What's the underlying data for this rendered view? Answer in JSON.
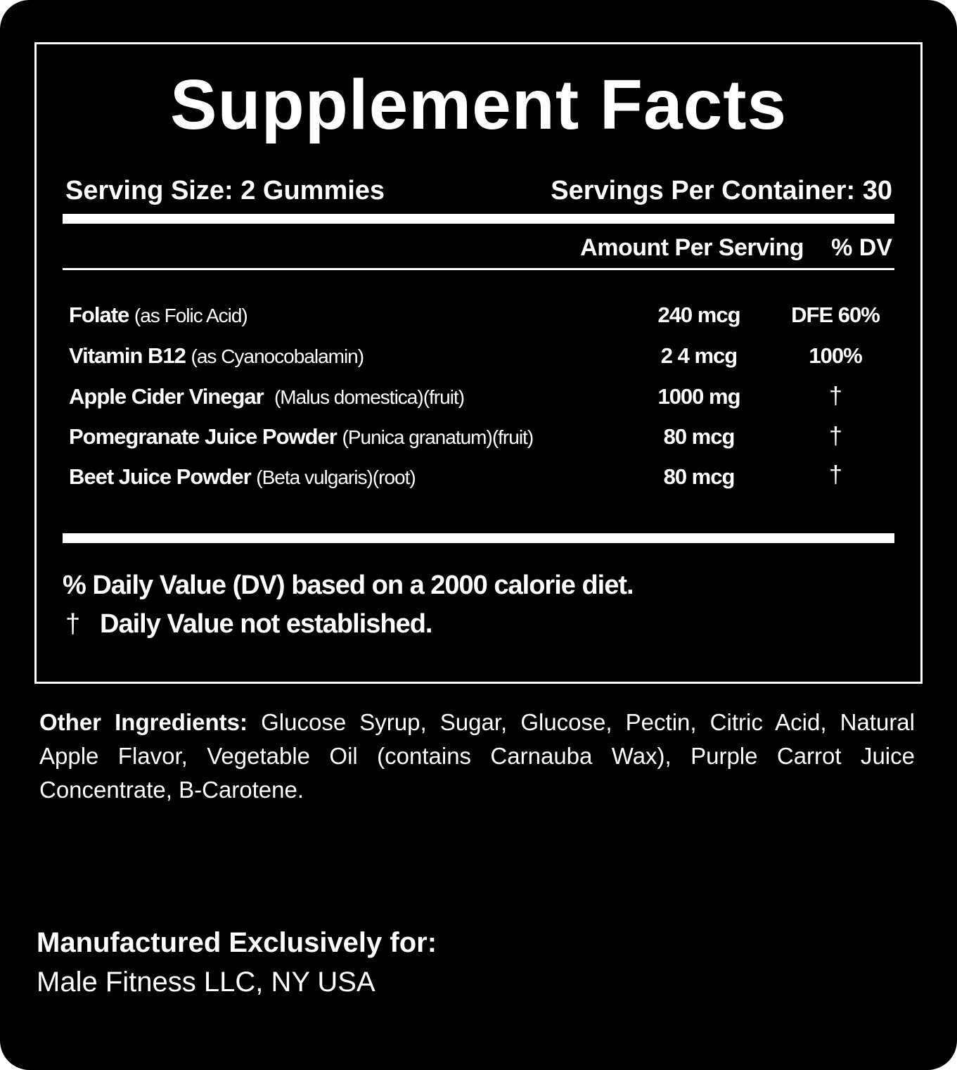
{
  "title": "Supplement Facts",
  "serving_size": "Serving Size: 2 Gummies",
  "servings_per_container": "Servings Per Container: 30",
  "amount_per_serving": "Amount Per Serving",
  "dv_header": "% DV",
  "rows": [
    {
      "name": "Folate",
      "source": "(as Folic Acid)",
      "amount": "240 mcg",
      "dv": "DFE 60%"
    },
    {
      "name": "Vitamin B12",
      "source": "(as Cyanocobalamin)",
      "amount": "2 4 mcg",
      "dv": "100%"
    },
    {
      "name": "Apple Cider Vinegar",
      "source": "(Malus domestica)(fruit)",
      "amount": "1000 mg",
      "dv": "†"
    },
    {
      "name": "Pomegranate Juice Powder",
      "source": "(Punica granatum)(fruit)",
      "amount": "80 mcg",
      "dv": "†"
    },
    {
      "name": "Beet Juice Powder",
      "source": "(Beta vulgaris)(root)",
      "amount": "80 mcg",
      "dv": "†"
    }
  ],
  "footnote_dv": "% Daily Value (DV) based on a 2000 calorie diet.",
  "footnote_dagger_symbol": "†",
  "footnote_dagger": "Daily Value not established.",
  "other_ingredients_label": "Other Ingredients:",
  "other_ingredients": "Glucose Syrup, Sugar, Glucose, Pectin, Citric Acid, Natural Apple Flavor, Vegetable Oil (contains Carnauba Wax), Purple Carrot Juice Concentrate, B-Carotene.",
  "manufactured_label": "Manufactured Exclusively for:",
  "manufacturer": "Male Fitness LLC, NY USA",
  "colors": {
    "background": "#000000",
    "text": "#ffffff"
  }
}
